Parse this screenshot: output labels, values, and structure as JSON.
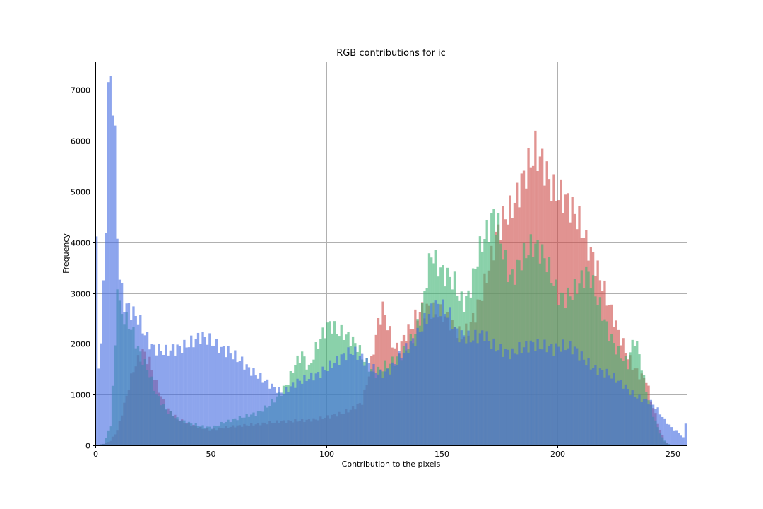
{
  "chart_data": {
    "type": "bar",
    "title": "RGB contributions for ic",
    "xlabel": "Contribution to the pixels",
    "ylabel": "Frequency",
    "xlim": [
      0,
      256
    ],
    "ylim": [
      0,
      7560
    ],
    "grid": true,
    "xticks": [
      0,
      50,
      100,
      150,
      200,
      250
    ],
    "yticks": [
      0,
      1000,
      2000,
      3000,
      4000,
      5000,
      6000,
      7000
    ],
    "bin_width": 1,
    "series": [
      {
        "color": "#cd4b48",
        "knots": [
          [
            0,
            0
          ],
          [
            3,
            30
          ],
          [
            6,
            90
          ],
          [
            9,
            300
          ],
          [
            12,
            800
          ],
          [
            16,
            1500
          ],
          [
            20,
            1850
          ],
          [
            23,
            1650
          ],
          [
            26,
            1200
          ],
          [
            30,
            750
          ],
          [
            35,
            520
          ],
          [
            40,
            420
          ],
          [
            45,
            340
          ],
          [
            50,
            310
          ],
          [
            55,
            350
          ],
          [
            60,
            380
          ],
          [
            65,
            400
          ],
          [
            70,
            420
          ],
          [
            75,
            450
          ],
          [
            80,
            470
          ],
          [
            85,
            480
          ],
          [
            90,
            490
          ],
          [
            95,
            510
          ],
          [
            100,
            560
          ],
          [
            105,
            620
          ],
          [
            110,
            700
          ],
          [
            115,
            850
          ],
          [
            118,
            1400
          ],
          [
            120,
            1900
          ],
          [
            122,
            2400
          ],
          [
            124,
            2700
          ],
          [
            126,
            2400
          ],
          [
            128,
            2000
          ],
          [
            130,
            1900
          ],
          [
            132,
            2000
          ],
          [
            134,
            2200
          ],
          [
            136,
            2300
          ],
          [
            138,
            2500
          ],
          [
            140,
            2650
          ],
          [
            143,
            2700
          ],
          [
            146,
            2650
          ],
          [
            149,
            2600
          ],
          [
            152,
            2500
          ],
          [
            155,
            2300
          ],
          [
            158,
            2150
          ],
          [
            161,
            2300
          ],
          [
            164,
            2600
          ],
          [
            167,
            3000
          ],
          [
            170,
            3500
          ],
          [
            173,
            4100
          ],
          [
            176,
            4450
          ],
          [
            179,
            4600
          ],
          [
            182,
            4900
          ],
          [
            185,
            5300
          ],
          [
            188,
            5600
          ],
          [
            190,
            5800
          ],
          [
            192,
            5650
          ],
          [
            194,
            5500
          ],
          [
            196,
            5200
          ],
          [
            198,
            5000
          ],
          [
            200,
            4950
          ],
          [
            203,
            4850
          ],
          [
            206,
            4650
          ],
          [
            209,
            4400
          ],
          [
            212,
            4000
          ],
          [
            215,
            3700
          ],
          [
            218,
            3300
          ],
          [
            221,
            2900
          ],
          [
            224,
            2500
          ],
          [
            227,
            2100
          ],
          [
            230,
            1750
          ],
          [
            233,
            1500
          ],
          [
            236,
            1350
          ],
          [
            238,
            1300
          ],
          [
            240,
            900
          ],
          [
            242,
            600
          ],
          [
            244,
            300
          ],
          [
            246,
            80
          ],
          [
            248,
            10
          ],
          [
            255,
            0
          ]
        ]
      },
      {
        "color": "#3cb371",
        "knots": [
          [
            0,
            0
          ],
          [
            3,
            30
          ],
          [
            6,
            400
          ],
          [
            8,
            1900
          ],
          [
            9,
            3300
          ],
          [
            10,
            2700
          ],
          [
            12,
            2500
          ],
          [
            14,
            2400
          ],
          [
            16,
            2200
          ],
          [
            18,
            1900
          ],
          [
            20,
            1700
          ],
          [
            23,
            1400
          ],
          [
            26,
            1000
          ],
          [
            30,
            700
          ],
          [
            35,
            520
          ],
          [
            40,
            440
          ],
          [
            45,
            380
          ],
          [
            50,
            350
          ],
          [
            55,
            450
          ],
          [
            60,
            520
          ],
          [
            65,
            580
          ],
          [
            70,
            640
          ],
          [
            75,
            800
          ],
          [
            80,
            1050
          ],
          [
            83,
            1250
          ],
          [
            86,
            1600
          ],
          [
            89,
            1800
          ],
          [
            92,
            1500
          ],
          [
            95,
            1900
          ],
          [
            98,
            2200
          ],
          [
            101,
            2400
          ],
          [
            104,
            2250
          ],
          [
            107,
            2200
          ],
          [
            110,
            2100
          ],
          [
            113,
            1950
          ],
          [
            115,
            1750
          ],
          [
            118,
            1550
          ],
          [
            120,
            1400
          ],
          [
            123,
            1500
          ],
          [
            126,
            1600
          ],
          [
            130,
            1700
          ],
          [
            134,
            1900
          ],
          [
            138,
            2200
          ],
          [
            141,
            2700
          ],
          [
            143,
            3300
          ],
          [
            145,
            3800
          ],
          [
            147,
            3600
          ],
          [
            150,
            3400
          ],
          [
            153,
            3300
          ],
          [
            155,
            3200
          ],
          [
            157,
            2900
          ],
          [
            159,
            2800
          ],
          [
            161,
            2950
          ],
          [
            163,
            3300
          ],
          [
            165,
            3700
          ],
          [
            167,
            4000
          ],
          [
            170,
            4300
          ],
          [
            172,
            4550
          ],
          [
            174,
            4300
          ],
          [
            176,
            3800
          ],
          [
            178,
            3400
          ],
          [
            180,
            3300
          ],
          [
            183,
            3600
          ],
          [
            186,
            3800
          ],
          [
            189,
            3950
          ],
          [
            192,
            3850
          ],
          [
            195,
            3600
          ],
          [
            198,
            3200
          ],
          [
            200,
            2950
          ],
          [
            203,
            2900
          ],
          [
            206,
            3000
          ],
          [
            209,
            3200
          ],
          [
            212,
            3400
          ],
          [
            214,
            3300
          ],
          [
            216,
            3000
          ],
          [
            219,
            2600
          ],
          [
            222,
            2200
          ],
          [
            225,
            1900
          ],
          [
            228,
            1700
          ],
          [
            230,
            1600
          ],
          [
            232,
            2000
          ],
          [
            233,
            2100
          ],
          [
            235,
            1800
          ],
          [
            237,
            1300
          ],
          [
            239,
            900
          ],
          [
            241,
            600
          ],
          [
            243,
            350
          ],
          [
            245,
            150
          ],
          [
            247,
            40
          ],
          [
            250,
            0
          ],
          [
            255,
            0
          ]
        ]
      },
      {
        "color": "#4169e1",
        "knots": [
          [
            0,
            3850
          ],
          [
            1,
            1600
          ],
          [
            2,
            2000
          ],
          [
            3,
            3100
          ],
          [
            4,
            4500
          ],
          [
            5,
            6850
          ],
          [
            6,
            7200
          ],
          [
            7,
            6900
          ],
          [
            8,
            5900
          ],
          [
            9,
            4200
          ],
          [
            10,
            3350
          ],
          [
            11,
            3000
          ],
          [
            12,
            2800
          ],
          [
            14,
            2700
          ],
          [
            16,
            2600
          ],
          [
            18,
            2500
          ],
          [
            20,
            2300
          ],
          [
            22,
            2100
          ],
          [
            24,
            1950
          ],
          [
            26,
            1900
          ],
          [
            30,
            1850
          ],
          [
            34,
            1900
          ],
          [
            38,
            1950
          ],
          [
            42,
            2050
          ],
          [
            45,
            2150
          ],
          [
            48,
            2100
          ],
          [
            51,
            2000
          ],
          [
            54,
            1900
          ],
          [
            57,
            1850
          ],
          [
            60,
            1750
          ],
          [
            63,
            1650
          ],
          [
            66,
            1500
          ],
          [
            69,
            1400
          ],
          [
            72,
            1300
          ],
          [
            75,
            1200
          ],
          [
            78,
            1100
          ],
          [
            81,
            1050
          ],
          [
            84,
            1150
          ],
          [
            87,
            1250
          ],
          [
            90,
            1300
          ],
          [
            93,
            1350
          ],
          [
            96,
            1400
          ],
          [
            99,
            1500
          ],
          [
            102,
            1600
          ],
          [
            105,
            1700
          ],
          [
            108,
            1800
          ],
          [
            111,
            1850
          ],
          [
            114,
            1750
          ],
          [
            117,
            1650
          ],
          [
            120,
            1500
          ],
          [
            123,
            1400
          ],
          [
            126,
            1450
          ],
          [
            129,
            1600
          ],
          [
            132,
            1800
          ],
          [
            135,
            1950
          ],
          [
            138,
            2100
          ],
          [
            141,
            2350
          ],
          [
            144,
            2600
          ],
          [
            147,
            2750
          ],
          [
            150,
            2700
          ],
          [
            153,
            2550
          ],
          [
            156,
            2200
          ],
          [
            159,
            2150
          ],
          [
            162,
            2100
          ],
          [
            165,
            2150
          ],
          [
            168,
            2200
          ],
          [
            171,
            2000
          ],
          [
            174,
            1900
          ],
          [
            177,
            1850
          ],
          [
            180,
            1800
          ],
          [
            183,
            1900
          ],
          [
            186,
            1950
          ],
          [
            189,
            2000
          ],
          [
            192,
            1950
          ],
          [
            195,
            1950
          ],
          [
            198,
            1900
          ],
          [
            201,
            1950
          ],
          [
            204,
            1950
          ],
          [
            207,
            1900
          ],
          [
            210,
            1750
          ],
          [
            213,
            1600
          ],
          [
            216,
            1500
          ],
          [
            219,
            1450
          ],
          [
            222,
            1400
          ],
          [
            225,
            1300
          ],
          [
            228,
            1200
          ],
          [
            231,
            1050
          ],
          [
            234,
            950
          ],
          [
            237,
            900
          ],
          [
            240,
            850
          ],
          [
            243,
            700
          ],
          [
            246,
            500
          ],
          [
            249,
            350
          ],
          [
            252,
            250
          ],
          [
            254,
            150
          ],
          [
            255,
            450
          ]
        ]
      }
    ]
  }
}
